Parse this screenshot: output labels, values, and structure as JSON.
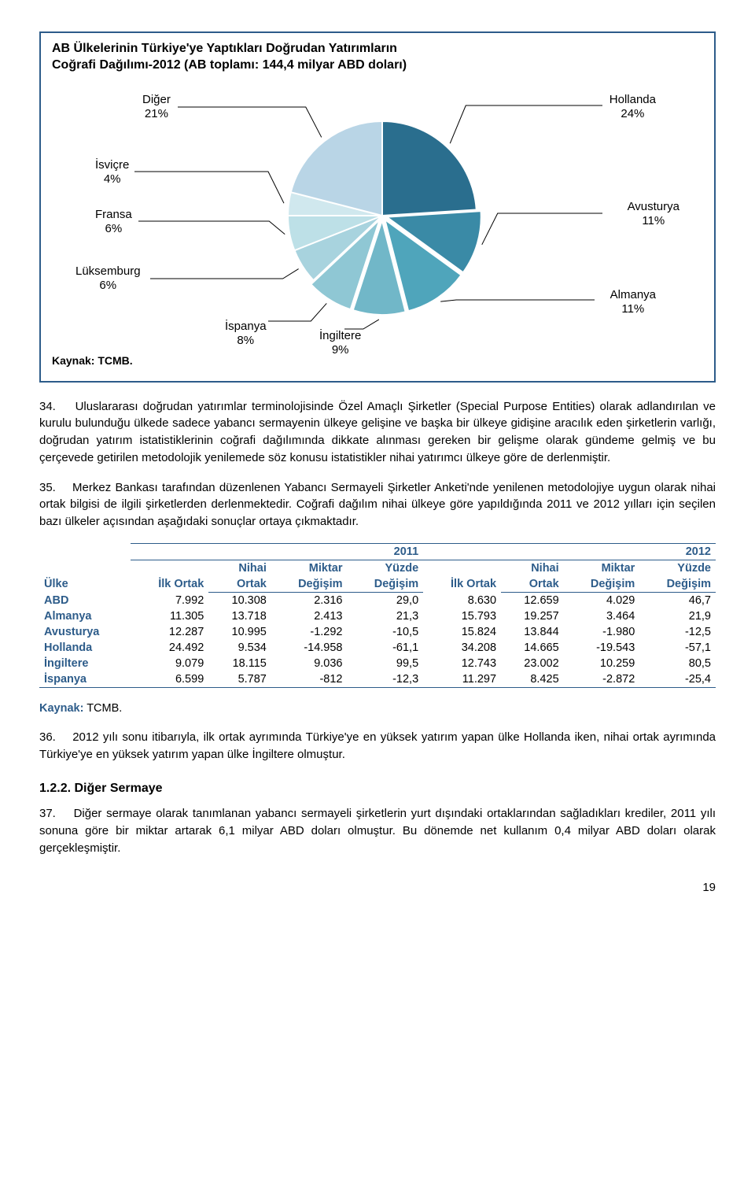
{
  "chart": {
    "title_l1": "AB Ülkelerinin Türkiye'ye Yaptıkları Doğrudan Yatırımların",
    "title_l2": "Coğrafi Dağılımı-2012 (AB toplamı: 144,4 milyar ABD doları)",
    "source": "Kaynak: TCMB.",
    "type": "pie",
    "slices": [
      {
        "label": "Hollanda",
        "pct": "24%",
        "value": 24,
        "color": "#2a6e8e"
      },
      {
        "label": "Avusturya",
        "pct": "11%",
        "value": 11,
        "color": "#3a8aa6"
      },
      {
        "label": "Almanya",
        "pct": "11%",
        "value": 11,
        "color": "#4fa5bb"
      },
      {
        "label": "İngiltere",
        "pct": "9%",
        "value": 9,
        "color": "#71b7c8"
      },
      {
        "label": "İspanya",
        "pct": "8%",
        "value": 8,
        "color": "#8fc7d4"
      },
      {
        "label": "Lüksemburg",
        "pct": "6%",
        "value": 6,
        "color": "#a8d3de"
      },
      {
        "label": "Fransa",
        "pct": "6%",
        "value": 6,
        "color": "#bde0e7"
      },
      {
        "label": "İsviçre",
        "pct": "4%",
        "value": 4,
        "color": "#d0e8ee"
      },
      {
        "label": "Diğer",
        "pct": "21%",
        "value": 21,
        "color": "#b9d5e6"
      }
    ]
  },
  "para34_num": "34.",
  "para34": "Uluslararası doğrudan yatırımlar terminolojisinde Özel Amaçlı Şirketler (Special Purpose Entities) olarak adlandırılan ve kurulu bulunduğu ülkede sadece yabancı sermayenin ülkeye gelişine ve başka bir ülkeye gidişine aracılık eden şirketlerin varlığı, doğrudan yatırım istatistiklerinin coğrafi dağılımında dikkate alınması gereken bir gelişme olarak gündeme gelmiş ve bu çerçevede getirilen metodolojik yenilemede söz konusu istatistikler nihai yatırımcı ülkeye göre de derlenmiştir.",
  "para35_num": "35.",
  "para35": "Merkez Bankası tarafından düzenlenen Yabancı Sermayeli Şirketler Anketi'nde yenilenen metodolojiye uygun olarak nihai ortak bilgisi de ilgili şirketlerden derlenmektedir. Coğrafi dağılım nihai ülkeye göre yapıldığında 2011 ve 2012 yılları için seçilen bazı ülkeler açısından aşağıdaki sonuçlar ortaya çıkmaktadır.",
  "table": {
    "year_a": "2011",
    "year_b": "2012",
    "head": {
      "ulke": "Ülke",
      "ilk": "İlk Ortak",
      "nihai": "Nihai\nOrtak",
      "miktar": "Miktar\nDeğişim",
      "yuzde": "Yüzde\nDeğişim"
    },
    "rows": [
      {
        "c": "ABD",
        "a1": "7.992",
        "a2": "10.308",
        "a3": "2.316",
        "a4": "29,0",
        "b1": "8.630",
        "b2": "12.659",
        "b3": "4.029",
        "b4": "46,7"
      },
      {
        "c": "Almanya",
        "a1": "11.305",
        "a2": "13.718",
        "a3": "2.413",
        "a4": "21,3",
        "b1": "15.793",
        "b2": "19.257",
        "b3": "3.464",
        "b4": "21,9"
      },
      {
        "c": "Avusturya",
        "a1": "12.287",
        "a2": "10.995",
        "a3": "-1.292",
        "a4": "-10,5",
        "b1": "15.824",
        "b2": "13.844",
        "b3": "-1.980",
        "b4": "-12,5"
      },
      {
        "c": "Hollanda",
        "a1": "24.492",
        "a2": "9.534",
        "a3": "-14.958",
        "a4": "-61,1",
        "b1": "34.208",
        "b2": "14.665",
        "b3": "-19.543",
        "b4": "-57,1"
      },
      {
        "c": "İngiltere",
        "a1": "9.079",
        "a2": "18.115",
        "a3": "9.036",
        "a4": "99,5",
        "b1": "12.743",
        "b2": "23.002",
        "b3": "10.259",
        "b4": "80,5"
      },
      {
        "c": "İspanya",
        "a1": "6.599",
        "a2": "5.787",
        "a3": "-812",
        "a4": "-12,3",
        "b1": "11.297",
        "b2": "8.425",
        "b3": "-2.872",
        "b4": "-25,4"
      }
    ],
    "source_label": "Kaynak:",
    "source_value": "TCMB."
  },
  "para36_num": "36.",
  "para36": "2012 yılı sonu itibarıyla, ilk ortak ayrımında Türkiye'ye en yüksek yatırım yapan ülke Hollanda iken, nihai ortak ayrımında Türkiye'ye en yüksek yatırım yapan ülke İngiltere olmuştur.",
  "section_122": "1.2.2. Diğer Sermaye",
  "para37_num": "37.",
  "para37": "Diğer sermaye olarak tanımlanan yabancı sermayeli şirketlerin yurt dışındaki ortaklarından sağladıkları krediler, 2011 yılı sonuna göre bir miktar artarak 6,1 milyar ABD doları olmuştur. Bu dönemde net kullanım 0,4 milyar ABD doları olarak gerçekleşmiştir.",
  "page_number": "19"
}
